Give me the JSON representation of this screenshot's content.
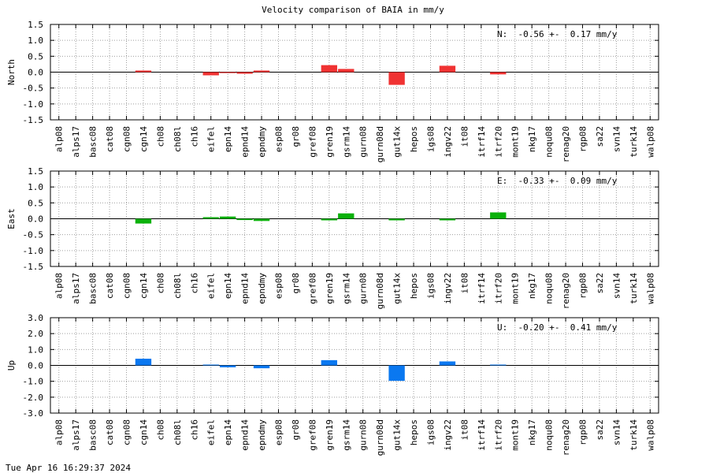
{
  "title": "Velocity comparison of BAIA in mm/y",
  "timestamp": "Tue Apr 16 16:29:37 2024",
  "chart_data": [
    {
      "type": "bar",
      "ylabel": "North",
      "annotation": "N:  -0.56 +-  0.17 mm/y",
      "ylim": [
        -1.5,
        1.5
      ],
      "yticks": [
        -1.5,
        -1.0,
        -0.5,
        0.0,
        0.5,
        1.0,
        1.5
      ],
      "ytick_labels": [
        "-1.5",
        "-1.0",
        "-0.5",
        "0.0",
        "0.5",
        "1.0",
        "1.5"
      ],
      "grid": true,
      "color": "#f03232",
      "categories": [
        "alp08",
        "alps17",
        "basc08",
        "cat08",
        "cgn08",
        "cgn14",
        "ch08",
        "ch08l",
        "ch16",
        "eifel",
        "epn14",
        "epnd14",
        "epndmy",
        "esp08",
        "gr08",
        "gref08",
        "gren19",
        "gsrm14",
        "gurn08",
        "gurn08d",
        "gut14x",
        "hepos",
        "igs08",
        "ingv22",
        "it08",
        "itrf14",
        "itrf20",
        "mont19",
        "nkg17",
        "noqu08",
        "renag20",
        "rgp08",
        "sa22",
        "svn14",
        "turk14",
        "walp08"
      ],
      "values": [
        null,
        null,
        null,
        null,
        null,
        0.05,
        null,
        null,
        null,
        -0.1,
        -0.03,
        -0.05,
        0.05,
        null,
        null,
        null,
        0.22,
        0.1,
        null,
        null,
        -0.4,
        null,
        null,
        0.2,
        null,
        null,
        -0.07,
        null,
        null,
        null,
        null,
        null,
        null,
        null,
        null,
        null
      ]
    },
    {
      "type": "bar",
      "ylabel": "East",
      "annotation": "E:  -0.33 +-  0.09 mm/y",
      "ylim": [
        -1.5,
        1.5
      ],
      "yticks": [
        -1.5,
        -1.0,
        -0.5,
        0.0,
        0.5,
        1.0,
        1.5
      ],
      "ytick_labels": [
        "-1.5",
        "-1.0",
        "-0.5",
        "0.0",
        "0.5",
        "1.0",
        "1.5"
      ],
      "grid": true,
      "color": "#0ab10a",
      "categories": [
        "alp08",
        "alps17",
        "basc08",
        "cat08",
        "cgn08",
        "cgn14",
        "ch08",
        "ch08l",
        "ch16",
        "eifel",
        "epn14",
        "epnd14",
        "epndmy",
        "esp08",
        "gr08",
        "gref08",
        "gren19",
        "gsrm14",
        "gurn08",
        "gurn08d",
        "gut14x",
        "hepos",
        "igs08",
        "ingv22",
        "it08",
        "itrf14",
        "itrf20",
        "mont19",
        "nkg17",
        "noqu08",
        "renag20",
        "rgp08",
        "sa22",
        "svn14",
        "turk14",
        "walp08"
      ],
      "values": [
        null,
        null,
        null,
        null,
        null,
        -0.15,
        null,
        null,
        null,
        0.05,
        0.07,
        -0.04,
        -0.07,
        null,
        null,
        null,
        -0.05,
        0.17,
        null,
        null,
        -0.05,
        null,
        null,
        -0.05,
        null,
        null,
        0.2,
        null,
        null,
        null,
        null,
        null,
        null,
        null,
        null,
        null
      ]
    },
    {
      "type": "bar",
      "ylabel": "Up",
      "annotation": "U:  -0.20 +-  0.41 mm/y",
      "ylim": [
        -3.0,
        3.0
      ],
      "yticks": [
        -3.0,
        -2.0,
        -1.0,
        0.0,
        1.0,
        2.0,
        3.0
      ],
      "ytick_labels": [
        "-3.0",
        "-2.0",
        "-1.0",
        "0.0",
        "1.0",
        "2.0",
        "3.0"
      ],
      "grid": true,
      "color": "#0a78f0",
      "categories": [
        "alp08",
        "alps17",
        "basc08",
        "cat08",
        "cgn08",
        "cgn14",
        "ch08",
        "ch08l",
        "ch16",
        "eifel",
        "epn14",
        "epnd14",
        "epndmy",
        "esp08",
        "gr08",
        "gref08",
        "gren19",
        "gsrm14",
        "gurn08",
        "gurn08d",
        "gut14x",
        "hepos",
        "igs08",
        "ingv22",
        "it08",
        "itrf14",
        "itrf20",
        "mont19",
        "nkg17",
        "noqu08",
        "renag20",
        "rgp08",
        "sa22",
        "svn14",
        "turk14",
        "walp08"
      ],
      "values": [
        null,
        null,
        null,
        null,
        null,
        0.42,
        null,
        null,
        null,
        0.05,
        -0.12,
        null,
        -0.18,
        null,
        null,
        null,
        0.33,
        null,
        null,
        null,
        -0.97,
        null,
        null,
        0.25,
        null,
        null,
        0.05,
        null,
        null,
        null,
        null,
        null,
        null,
        null,
        null,
        null
      ]
    }
  ]
}
